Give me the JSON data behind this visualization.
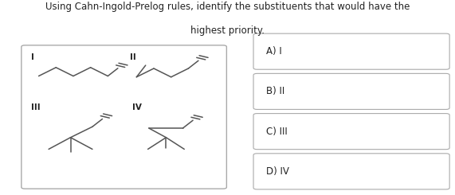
{
  "title_line1": "Using Cahn-Ingold-Prelog rules, identify the substituents that would have the",
  "title_line2": "highest priority.",
  "title_fontsize": 8.5,
  "bg_color": "#ffffff",
  "box_edge_color": "#aaaaaa",
  "answer_labels": [
    "A) I",
    "B) II",
    "C) III",
    "D) IV"
  ],
  "roman_labels": [
    "I",
    "II",
    "III",
    "IV"
  ],
  "answer_fontsize": 8.5,
  "line_color": "#555555",
  "label_fontsize": 7.5,
  "line_width": 1.1
}
